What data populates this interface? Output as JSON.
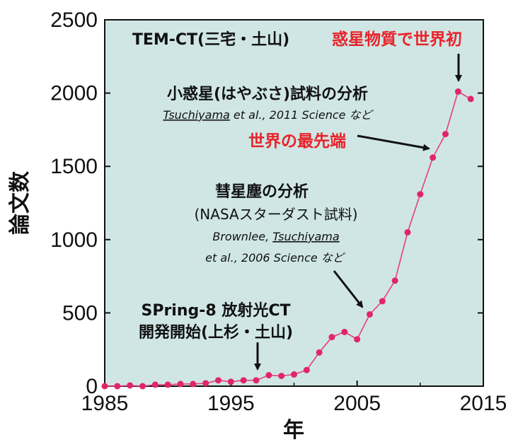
{
  "chart_data": {
    "type": "line",
    "xlabel": "年",
    "ylabel": "論文数",
    "xlim": [
      1985,
      2015
    ],
    "ylim": [
      0,
      2500
    ],
    "xticks": [
      1985,
      1995,
      2005,
      2015
    ],
    "yticks": [
      0,
      500,
      1000,
      1500,
      2000,
      2500
    ],
    "grid": false,
    "background": "#cfe6e4",
    "line_color": "#e83e7a",
    "marker_color": "#e0266a",
    "series": [
      {
        "x": [
          1985,
          1986,
          1987,
          1988,
          1989,
          1990,
          1991,
          1992,
          1993,
          1994,
          1995,
          1996,
          1997,
          1998,
          1999,
          2000,
          2001,
          2002,
          2003,
          2004,
          2005,
          2006,
          2007,
          2008,
          2009,
          2010,
          2011,
          2012,
          2013,
          2014
        ],
        "y": [
          0,
          0,
          5,
          0,
          10,
          10,
          15,
          15,
          20,
          40,
          30,
          40,
          40,
          75,
          70,
          80,
          110,
          230,
          335,
          370,
          320,
          490,
          580,
          720,
          1050,
          1310,
          1560,
          1720,
          2010,
          1960
        ]
      }
    ],
    "annotations": {
      "tem_ct": "TEM-CT(三宅・土山)",
      "first_world": "惑星物質で世界初",
      "hayabusa": "小惑星(はやぶさ)試料の分析",
      "hayabusa_cite_name": "Tsuchiyama",
      "hayabusa_cite_rest": " et al., 2011 Science など",
      "world_front": "世界の最先端",
      "comet": "彗星塵の分析",
      "stardust": "(NASAスターダスト試料)",
      "stardust_cite_a": "Brownlee, ",
      "stardust_cite_name": "Tsuchiyama",
      "stardust_cite_b": "et al., 2006 Science など",
      "spring8_l1": "SPring-8 放射光CT",
      "spring8_l2": "開発開始(上杉・土山)"
    }
  }
}
